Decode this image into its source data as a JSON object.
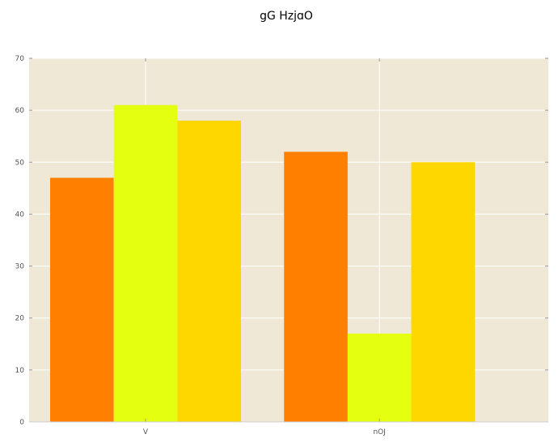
{
  "chart_data": {
    "type": "bar",
    "title": "gG HzjɑO",
    "xlabel": "",
    "ylabel": "",
    "categories": [
      "V",
      "nOJ"
    ],
    "series": [
      {
        "values": [
          47,
          52
        ],
        "color": "#ff7f00"
      },
      {
        "values": [
          61,
          17
        ],
        "color": "#e5ff10"
      },
      {
        "values": [
          58,
          50
        ],
        "color": "#ffd700"
      }
    ],
    "ylim": [
      0,
      70
    ],
    "yticks": [
      0,
      10,
      20,
      30,
      40,
      50,
      60,
      70
    ],
    "grid": true,
    "background": "#efe8d6",
    "grid_color": "#ffffff"
  }
}
